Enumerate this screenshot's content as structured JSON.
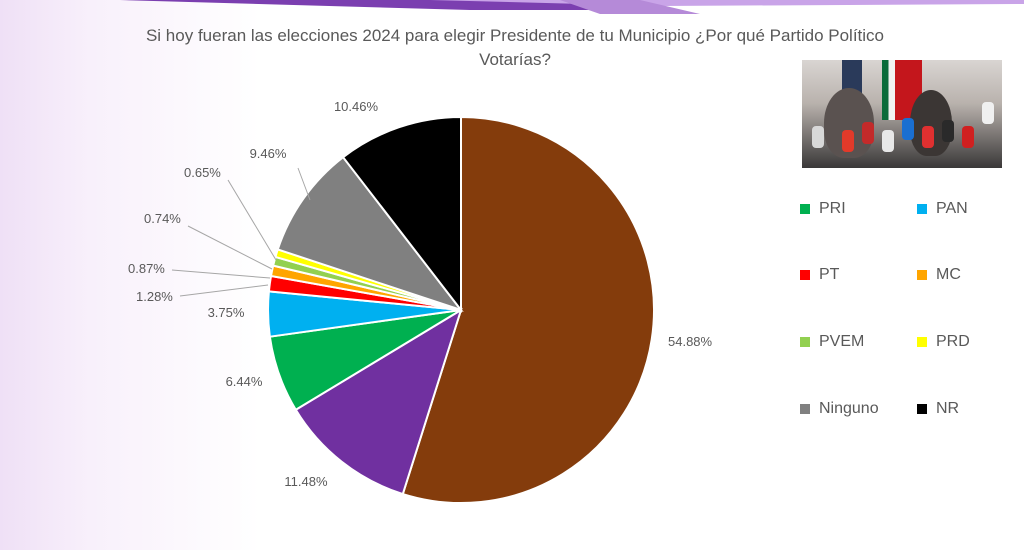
{
  "title_line1": "Si hoy fueran las elecciones 2024 para elegir Presidente de tu Municipio ¿Por qué  Partido Político",
  "title_line2": "Votarías?",
  "chart_data": {
    "type": "pie",
    "title": "Si hoy fueran las elecciones 2024 para elegir Presidente de tu Municipio ¿Por qué  Partido Político Votarías?",
    "slices": [
      {
        "label": "",
        "value": 54.88,
        "text": "54.88%",
        "color": "#843c0c"
      },
      {
        "label": "",
        "value": 11.48,
        "text": "11.48%",
        "color": "#7030a0"
      },
      {
        "label": "PRI",
        "value": 6.44,
        "text": "6.44%",
        "color": "#00b050"
      },
      {
        "label": "PAN",
        "value": 3.75,
        "text": "3.75%",
        "color": "#00b0f0"
      },
      {
        "label": "PT",
        "value": 1.28,
        "text": "1.28%",
        "color": "#ff0000"
      },
      {
        "label": "MC",
        "value": 0.87,
        "text": "0.87%",
        "color": "#ffa500"
      },
      {
        "label": "PVEM",
        "value": 0.74,
        "text": "0.74%",
        "color": "#92d050"
      },
      {
        "label": "PRD",
        "value": 0.65,
        "text": "0.65%",
        "color": "#ffff00"
      },
      {
        "label": "Ninguno",
        "value": 9.46,
        "text": "9.46%",
        "color": "#808080"
      },
      {
        "label": "NR",
        "value": 10.46,
        "text": "10.46%",
        "color": "#000000"
      }
    ],
    "legend_placement": "right",
    "legend": [
      {
        "label": "PRI",
        "color": "#00b050"
      },
      {
        "label": "PAN",
        "color": "#00b0f0"
      },
      {
        "label": "PT",
        "color": "#ff0000"
      },
      {
        "label": "MC",
        "color": "#ffa500"
      },
      {
        "label": "PVEM",
        "color": "#92d050"
      },
      {
        "label": "PRD",
        "color": "#ffff00"
      },
      {
        "label": "Ninguno",
        "color": "#808080"
      },
      {
        "label": "NR",
        "color": "#000000"
      }
    ]
  }
}
